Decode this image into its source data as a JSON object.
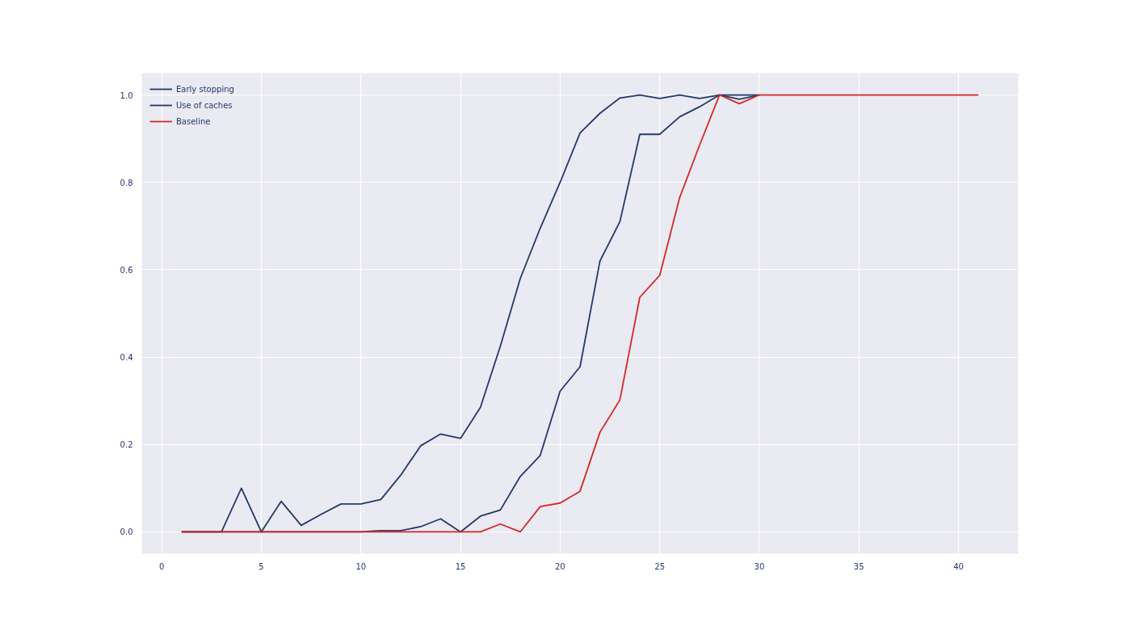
{
  "chart_data": {
    "type": "line",
    "x": [
      1,
      2,
      3,
      4,
      5,
      6,
      7,
      8,
      9,
      10,
      11,
      12,
      13,
      14,
      15,
      16,
      17,
      18,
      19,
      20,
      21,
      22,
      23,
      24,
      25,
      26,
      27,
      28,
      29,
      30,
      31,
      32,
      33,
      34,
      35,
      36,
      37,
      38,
      39,
      40,
      41
    ],
    "series": [
      {
        "name": "Early stopping",
        "color": "#24386b",
        "values": [
          0,
          0,
          0,
          0.1,
          0,
          0.07,
          0.015,
          0.04,
          0.064,
          0.064,
          0.074,
          0.13,
          0.197,
          0.224,
          0.214,
          0.285,
          0.425,
          0.58,
          0.695,
          0.8,
          0.913,
          0.958,
          0.993,
          1.0,
          0.992,
          1.0,
          0.992,
          1.0,
          1.0,
          1.0,
          null,
          null,
          null,
          null,
          null,
          null,
          null,
          null,
          null,
          null,
          null
        ]
      },
      {
        "name": "Use of caches",
        "color": "#24386b",
        "values": [
          0,
          0,
          0,
          0,
          0,
          0,
          0,
          0,
          0,
          0,
          0.003,
          0.003,
          0.012,
          0.03,
          0,
          0.036,
          0.05,
          0.127,
          0.175,
          0.322,
          0.378,
          0.62,
          0.71,
          0.91,
          0.91,
          0.95,
          0.973,
          1.0,
          0.99,
          1.0,
          null,
          null,
          null,
          null,
          null,
          null,
          null,
          null,
          null,
          null,
          null
        ]
      },
      {
        "name": "Baseline",
        "color": "#d62728",
        "values": [
          0,
          0,
          0,
          0,
          0,
          0,
          0,
          0,
          0,
          0,
          0,
          0,
          0,
          0,
          0,
          0,
          0.018,
          0,
          0.058,
          0.066,
          0.093,
          0.228,
          0.302,
          0.537,
          0.587,
          0.765,
          0.885,
          1.0,
          0.98,
          1.0,
          1.0,
          1.0,
          1.0,
          1.0,
          1.0,
          1.0,
          1.0,
          1.0,
          1.0,
          1.0,
          1.0
        ]
      }
    ],
    "xlim": [
      -1,
      43
    ],
    "xticks": [
      0,
      5,
      10,
      15,
      20,
      25,
      30,
      35,
      40
    ],
    "ylim": [
      -0.05,
      1.05
    ],
    "yticks": [
      {
        "value": 0,
        "label": "0.0"
      },
      {
        "value": 0.2,
        "label": "0.2"
      },
      {
        "value": 0.4,
        "label": "0.4"
      },
      {
        "value": 0.6,
        "label": "0.6"
      },
      {
        "value": 0.8,
        "label": "0.8"
      },
      {
        "value": 1.0,
        "label": "1.0"
      }
    ],
    "grid": true,
    "legend": "top left",
    "line_style": "solid"
  }
}
